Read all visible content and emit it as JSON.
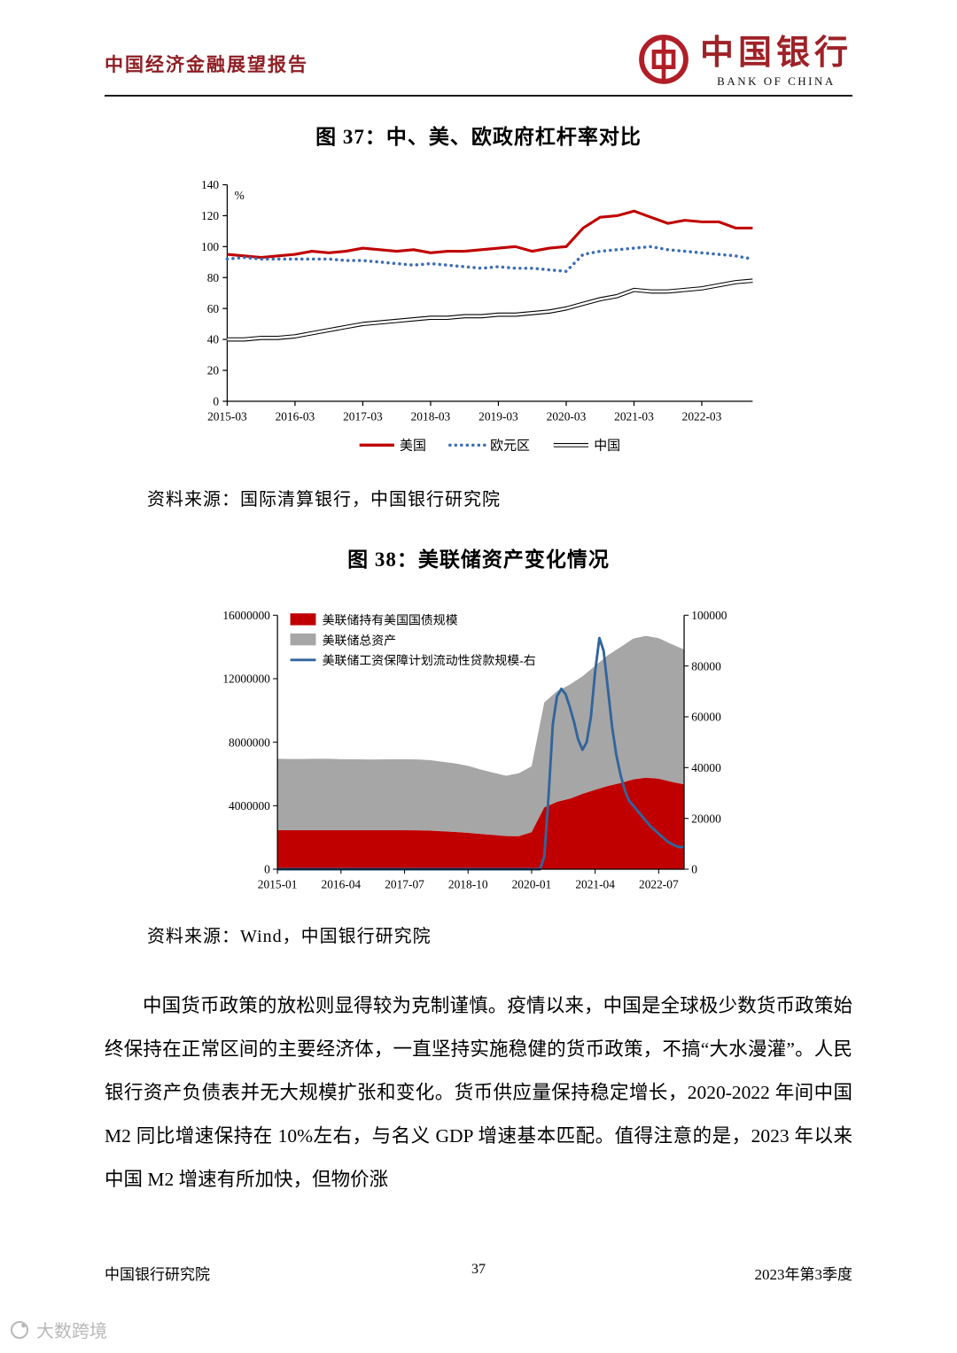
{
  "header": {
    "report_title": "中国经济金融展望报告",
    "logo_cn": "中国银行",
    "logo_en": "BANK OF CHINA",
    "logo_color": "#b01e28"
  },
  "figures": {
    "fig37": {
      "title": "图 37：中、美、欧政府杠杆率对比",
      "source": "资料来源：国际清算银行，中国银行研究院"
    },
    "fig38": {
      "title": "图 38：美联储资产变化情况",
      "source": "资料来源：Wind，中国银行研究院"
    }
  },
  "body": {
    "paragraph": "中国货币政策的放松则显得较为克制谨慎。疫情以来，中国是全球极少数货币政策始终保持在正常区间的主要经济体，一直坚持实施稳健的货币政策，不搞“大水漫灌”。人民银行资产负债表并无大规模扩张和变化。货币供应量保持稳定增长，2020-2022 年间中国 M2 同比增速保持在 10%左右，与名义 GDP 增速基本匹配。值得注意的是，2023 年以来中国 M2 增速有所加快，但物价涨"
  },
  "footer": {
    "left": "中国银行研究院",
    "page_number": "37",
    "right": "2023年第3季度"
  },
  "watermark": {
    "label": "大数跨境"
  },
  "chart_data": [
    {
      "id": "fig37",
      "type": "line",
      "title": "图 37：中、美、欧政府杠杆率对比",
      "ylabel": "%",
      "ylim": [
        0,
        140
      ],
      "yticks": [
        0,
        20,
        40,
        60,
        80,
        100,
        120,
        140
      ],
      "grid": false,
      "legend_position": "bottom",
      "x_tick_labels": [
        "2015-03",
        "2016-03",
        "2017-03",
        "2018-03",
        "2019-03",
        "2020-03",
        "2021-03",
        "2022-03"
      ],
      "x_tick_indices": [
        0,
        4,
        8,
        12,
        16,
        20,
        24,
        28
      ],
      "categories": [
        "2015-03",
        "2015-06",
        "2015-09",
        "2015-12",
        "2016-03",
        "2016-06",
        "2016-09",
        "2016-12",
        "2017-03",
        "2017-06",
        "2017-09",
        "2017-12",
        "2018-03",
        "2018-06",
        "2018-09",
        "2018-12",
        "2019-03",
        "2019-06",
        "2019-09",
        "2019-12",
        "2020-03",
        "2020-06",
        "2020-09",
        "2020-12",
        "2021-03",
        "2021-06",
        "2021-09",
        "2021-12",
        "2022-03",
        "2022-06",
        "2022-09",
        "2022-12"
      ],
      "series": [
        {
          "name": "美国",
          "style": "solid",
          "color": "#c00000",
          "values": [
            95,
            94,
            93,
            94,
            95,
            97,
            96,
            97,
            99,
            98,
            97,
            98,
            96,
            97,
            97,
            98,
            99,
            100,
            97,
            99,
            100,
            112,
            119,
            120,
            123,
            119,
            115,
            117,
            116,
            116,
            112,
            112
          ]
        },
        {
          "name": "欧元区",
          "style": "dotted",
          "color": "#3d6eb4",
          "values": [
            92,
            93,
            92,
            92,
            92,
            92,
            92,
            91,
            91,
            90,
            89,
            88,
            89,
            88,
            87,
            86,
            87,
            86,
            86,
            85,
            84,
            95,
            97,
            98,
            99,
            100,
            98,
            97,
            96,
            95,
            94,
            92
          ]
        },
        {
          "name": "中国",
          "style": "double",
          "color": "#000000",
          "values": [
            40,
            40,
            41,
            41,
            42,
            44,
            46,
            48,
            50,
            51,
            52,
            53,
            54,
            54,
            55,
            55,
            56,
            56,
            57,
            58,
            60,
            63,
            66,
            68,
            72,
            71,
            71,
            72,
            73,
            75,
            77,
            78
          ]
        }
      ]
    },
    {
      "id": "fig38",
      "type": "area",
      "title": "图 38：美联储资产变化情况",
      "stacking": "stacked",
      "grid": false,
      "legend_position": "top-left",
      "ylim_left": [
        0,
        16000000
      ],
      "yticks_left": [
        0,
        4000000,
        8000000,
        12000000,
        16000000
      ],
      "ylim_right": [
        0,
        100000
      ],
      "yticks_right": [
        0,
        20000,
        40000,
        60000,
        80000,
        100000
      ],
      "x_tick_dates": [
        "2015-01",
        "2016-04",
        "2017-07",
        "2018-10",
        "2020-01",
        "2021-04",
        "2022-07"
      ],
      "x_range_months": 96,
      "series": [
        {
          "name": "美联储持有美国国债规模",
          "kind": "area",
          "axis": "left",
          "color": "#c00000",
          "dates": [
            "2015-01",
            "2015-04",
            "2015-07",
            "2015-10",
            "2016-01",
            "2016-04",
            "2016-07",
            "2016-10",
            "2017-01",
            "2017-04",
            "2017-07",
            "2017-10",
            "2018-01",
            "2018-04",
            "2018-07",
            "2018-10",
            "2019-01",
            "2019-04",
            "2019-07",
            "2019-10",
            "2020-01",
            "2020-04",
            "2020-07",
            "2020-10",
            "2021-01",
            "2021-04",
            "2021-07",
            "2021-10",
            "2022-01",
            "2022-04",
            "2022-07",
            "2022-10",
            "2023-01"
          ],
          "values": [
            2460000,
            2460000,
            2460000,
            2460000,
            2460000,
            2460000,
            2460000,
            2460000,
            2460000,
            2460000,
            2460000,
            2450000,
            2430000,
            2390000,
            2340000,
            2290000,
            2220000,
            2150000,
            2090000,
            2080000,
            2330000,
            3890000,
            4240000,
            4440000,
            4740000,
            5000000,
            5240000,
            5430000,
            5660000,
            5760000,
            5700000,
            5500000,
            5340000
          ]
        },
        {
          "name": "美联储总资产",
          "kind": "area",
          "axis": "left",
          "color": "#a6a6a6",
          "stacked_on_previous": true,
          "dates": [
            "2015-01",
            "2015-04",
            "2015-07",
            "2015-10",
            "2016-01",
            "2016-04",
            "2016-07",
            "2016-10",
            "2017-01",
            "2017-04",
            "2017-07",
            "2017-10",
            "2018-01",
            "2018-04",
            "2018-07",
            "2018-10",
            "2019-01",
            "2019-04",
            "2019-07",
            "2019-10",
            "2020-01",
            "2020-04",
            "2020-07",
            "2020-10",
            "2021-01",
            "2021-04",
            "2021-07",
            "2021-10",
            "2022-01",
            "2022-04",
            "2022-07",
            "2022-10",
            "2023-01"
          ],
          "values": [
            4500000,
            4480000,
            4480000,
            4490000,
            4490000,
            4470000,
            4470000,
            4450000,
            4450000,
            4470000,
            4470000,
            4460000,
            4440000,
            4380000,
            4320000,
            4220000,
            4060000,
            3930000,
            3800000,
            3970000,
            4150000,
            6620000,
            6970000,
            7180000,
            7410000,
            7820000,
            8240000,
            8570000,
            8870000,
            8940000,
            8850000,
            8680000,
            8500000
          ]
        },
        {
          "name": "美联储工资保障计划流动性贷款规模-右",
          "kind": "line",
          "axis": "right",
          "color": "#31659c",
          "dates": [
            "2015-01",
            "2019-10",
            "2020-01",
            "2020-03",
            "2020-04",
            "2020-05",
            "2020-06",
            "2020-07",
            "2020-08",
            "2020-09",
            "2020-10",
            "2020-11",
            "2020-12",
            "2021-01",
            "2021-02",
            "2021-03",
            "2021-04",
            "2021-05",
            "2021-06",
            "2021-07",
            "2021-08",
            "2021-09",
            "2021-10",
            "2021-11",
            "2021-12",
            "2022-01",
            "2022-02",
            "2022-03",
            "2022-04",
            "2022-05",
            "2022-06",
            "2022-07",
            "2022-08",
            "2022-09",
            "2022-10",
            "2022-11",
            "2022-12",
            "2023-01"
          ],
          "values": [
            0,
            0,
            0,
            0,
            5000,
            29000,
            57000,
            68000,
            71000,
            69000,
            64000,
            58000,
            51000,
            47000,
            50000,
            60000,
            78000,
            91000,
            86000,
            71000,
            56000,
            45000,
            37000,
            31000,
            27000,
            25000,
            23000,
            21000,
            19000,
            17000,
            15500,
            14000,
            12500,
            11000,
            10000,
            9200,
            8600,
            9000
          ]
        }
      ]
    }
  ]
}
